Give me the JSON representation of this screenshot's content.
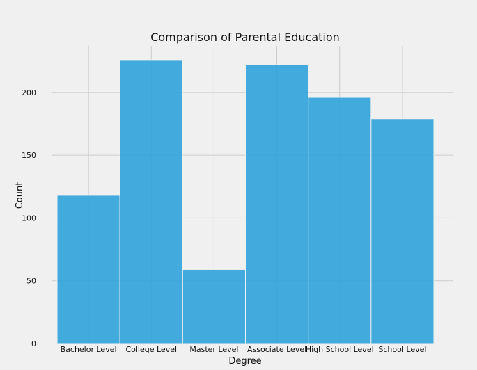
{
  "chart_data": {
    "type": "bar",
    "title": "Comparison of Parental Education",
    "xlabel": "Degree",
    "ylabel": "Count",
    "categories": [
      "Bachelor Level",
      "College Level",
      "Master Level",
      "Associate Level",
      "High School Level",
      "School Level"
    ],
    "values": [
      118,
      226,
      59,
      222,
      196,
      179
    ],
    "ylim": [
      0,
      237
    ],
    "yticks": [
      "0",
      "50",
      "100",
      "150",
      "200"
    ],
    "grid": true,
    "bar_color": "#30a2da",
    "background_color": "#f0f0f0"
  }
}
